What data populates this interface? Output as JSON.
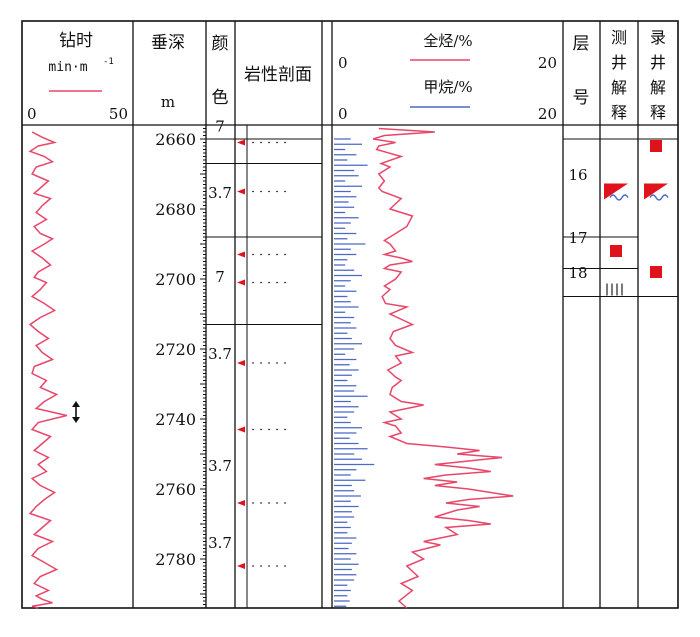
{
  "headers": {
    "rop": {
      "title": "钻时",
      "unit": "min·m",
      "unit_exp": "-1",
      "min": "0",
      "max": "50"
    },
    "depth": {
      "title": "垂深",
      "unit": "m"
    },
    "color": {
      "title_1": "颜",
      "title_2": "色"
    },
    "lithology": {
      "title": "岩性剖面"
    },
    "gas": {
      "total_label": "全烃/%",
      "total_min": "0",
      "total_max": "20",
      "methane_label": "甲烷/%",
      "methane_min": "0",
      "methane_max": "20"
    },
    "layer": {
      "title_1": "层",
      "title_2": "号"
    },
    "logging_interp": {
      "chars": [
        "测",
        "井",
        "解",
        "释"
      ]
    },
    "mud_interp": {
      "chars": [
        "录",
        "井",
        "解",
        "释"
      ]
    }
  },
  "colors": {
    "rop_curve": "#e8476a",
    "total_gas": "#e8476a",
    "methane": "#4b69c6",
    "marker_red": "#e0121b",
    "line": "#111111"
  },
  "depth_ticks": [
    "2660",
    "2680",
    "2700",
    "2720",
    "2740",
    "2760",
    "2780"
  ],
  "color_codes": [
    {
      "top": 2655,
      "label": "7"
    },
    {
      "top": 2674,
      "label": "3.7"
    },
    {
      "top": 2698,
      "label": "7"
    },
    {
      "top": 2720,
      "label": "3.7"
    },
    {
      "top": 2752,
      "label": "3.7"
    },
    {
      "top": 2774,
      "label": "3.7"
    }
  ],
  "color_boundaries": [
    2660,
    2667,
    2688,
    2713
  ],
  "layers": [
    {
      "top": 2670,
      "label": "16"
    },
    {
      "top": 2688,
      "label": "17"
    },
    {
      "top": 2698,
      "label": "18"
    }
  ],
  "layer_boundaries": [
    2660,
    2688,
    2697,
    2705
  ],
  "logging_interp_marks": [
    {
      "depth": 2675,
      "icon": "gas-water-icon"
    },
    {
      "depth": 2692,
      "icon": "red-square-icon"
    },
    {
      "depth": 2703,
      "icon": "dry-layer-icon"
    }
  ],
  "mud_interp_marks": [
    {
      "depth": 2662,
      "icon": "red-square-icon"
    },
    {
      "depth": 2675,
      "icon": "gas-water-icon"
    },
    {
      "depth": 2698,
      "icon": "red-square-icon"
    }
  ],
  "chart_data": [
    {
      "type": "line",
      "name": "rop",
      "xlim": [
        0,
        50
      ],
      "ylim": [
        2656,
        2794
      ],
      "x": [
        3,
        8,
        14,
        6,
        2,
        9,
        13,
        5,
        3,
        11,
        7,
        4,
        12,
        8,
        5,
        10,
        4,
        7,
        13,
        9,
        3,
        8,
        12,
        6,
        4,
        10,
        7,
        3,
        9,
        14,
        7,
        2,
        6,
        11,
        5,
        8,
        13,
        4,
        3,
        10,
        7,
        15,
        9,
        5,
        20,
        6,
        3,
        12,
        8,
        4,
        11,
        6,
        10,
        3,
        7,
        14,
        9,
        5,
        2,
        12,
        8,
        4,
        13,
        6,
        3,
        9,
        15,
        7,
        4,
        11,
        5,
        8,
        13,
        3,
        6
      ],
      "y": [
        2658,
        2659.5,
        2661,
        2662,
        2663.5,
        2665,
        2666.5,
        2668,
        2670,
        2672,
        2674,
        2675.5,
        2677,
        2679,
        2681,
        2683,
        2685,
        2687,
        2688.5,
        2690,
        2692,
        2694,
        2696,
        2698,
        2699.5,
        2701,
        2703,
        2705,
        2707,
        2709,
        2711,
        2713,
        2715,
        2717,
        2719,
        2721,
        2723,
        2725,
        2727,
        2729,
        2731,
        2733,
        2735,
        2737,
        2739,
        2741,
        2743,
        2745,
        2747,
        2749,
        2751,
        2753,
        2755,
        2757,
        2759,
        2761,
        2763,
        2765,
        2767,
        2769,
        2771,
        2773,
        2775,
        2777,
        2779,
        2781,
        2783,
        2785,
        2787,
        2789,
        2790.5,
        2791.5,
        2792.5,
        2793.5,
        2794
      ]
    },
    {
      "type": "line",
      "name": "total-gas",
      "xlim": [
        0,
        20
      ],
      "ylim": [
        2656,
        2794
      ],
      "x": [
        4,
        9,
        4.5,
        3.5,
        5.5,
        4,
        3.8,
        6,
        4.2,
        5,
        4,
        4.5,
        4,
        4.3,
        6,
        5,
        7,
        6.5,
        5.5,
        4.5,
        5,
        5.5,
        4.5,
        6,
        7,
        5,
        4.5,
        6,
        5.5,
        4.5,
        5,
        4.3,
        4.6,
        6.5,
        5,
        7,
        5.3,
        5,
        5.5,
        7,
        5.5,
        6,
        4.8,
        5.5,
        6,
        5.2,
        5,
        6,
        8,
        6.5,
        5,
        6,
        4.5,
        5.5,
        6,
        5,
        6.5,
        10,
        13,
        11,
        15,
        12,
        9,
        12,
        14,
        10,
        8,
        11,
        9,
        12,
        16,
        12,
        10,
        13,
        11,
        9,
        12,
        14,
        10,
        11,
        8,
        9.5,
        7,
        8,
        6.5,
        7.5,
        6,
        7,
        5.8,
        6.5
      ],
      "y": [
        2657,
        2658,
        2659,
        2660,
        2661,
        2662,
        2663,
        2665,
        2667,
        2668,
        2670,
        2672,
        2674,
        2675,
        2677,
        2680,
        2682,
        2685,
        2687,
        2689,
        2690,
        2692,
        2693,
        2694,
        2695,
        2696,
        2697,
        2698,
        2700,
        2702,
        2703,
        2705,
        2707,
        2708,
        2710,
        2713,
        2715,
        2717,
        2719,
        2721,
        2722,
        2724,
        2726,
        2728,
        2729,
        2731,
        2733,
        2735,
        2736,
        2737,
        2738,
        2740,
        2741,
        2742,
        2744,
        2745,
        2747,
        2748,
        2749,
        2750,
        2751,
        2752,
        2753,
        2754,
        2755,
        2756,
        2757,
        2758,
        2759,
        2760,
        2762,
        2763,
        2764,
        2765,
        2766,
        2768,
        2769,
        2770,
        2771,
        2773,
        2775,
        2776,
        2778,
        2780,
        2782,
        2785,
        2787,
        2789,
        2792,
        2794
      ]
    },
    {
      "type": "bar",
      "name": "methane",
      "xlim": [
        0,
        20
      ],
      "ylim": [
        2656,
        2794
      ],
      "y": [
        2660,
        2661.5,
        2663,
        2664.5,
        2666,
        2667.5,
        2669,
        2670.5,
        2672,
        2673.5,
        2675,
        2676.5,
        2678,
        2679.5,
        2681,
        2682.5,
        2684,
        2685.5,
        2687,
        2688.5,
        2690,
        2691.5,
        2693,
        2694.5,
        2696,
        2697.5,
        2699,
        2700.5,
        2702,
        2703.5,
        2705,
        2706.5,
        2708,
        2709.5,
        2711,
        2712.5,
        2714,
        2715.5,
        2717,
        2718.5,
        2720,
        2721.5,
        2723,
        2724.5,
        2726,
        2727.5,
        2729,
        2730.5,
        2732,
        2733.5,
        2735,
        2736.5,
        2738,
        2739.5,
        2741,
        2742.5,
        2744,
        2745.5,
        2747,
        2748.5,
        2750,
        2751.5,
        2753,
        2754.5,
        2756,
        2757.5,
        2759,
        2760.5,
        2762,
        2763.5,
        2765,
        2766.5,
        2768,
        2769.5,
        2771,
        2772.5,
        2774,
        2775.5,
        2777,
        2778.5,
        2780,
        2781.5,
        2783,
        2784.5,
        2786,
        2787.5,
        2789,
        2790.5,
        2792,
        2793.5
      ],
      "values": [
        1.5,
        2.5,
        1,
        2,
        1.2,
        3,
        1.8,
        2.2,
        1,
        2.5,
        1.5,
        2,
        1.3,
        1.8,
        1,
        2.2,
        1.5,
        1,
        2,
        1.2,
        2.8,
        1.5,
        2,
        1.2,
        1,
        1.8,
        2.5,
        1.5,
        1,
        2,
        1.2,
        1.5,
        2.2,
        1,
        1.8,
        1.5,
        2,
        1.2,
        1.6,
        2.5,
        1.8,
        1,
        2,
        1.4,
        2.2,
        1.6,
        1.2,
        2,
        1.8,
        3,
        1.5,
        2.2,
        1.8,
        1.2,
        1.5,
        2.5,
        2,
        1.4,
        2.2,
        3,
        1.8,
        2.5,
        3.6,
        2,
        1.5,
        2.8,
        1.6,
        1.8,
        2.4,
        1.5,
        2.2,
        1.6,
        1.8,
        1.2,
        1.5,
        1.2,
        2,
        1.6,
        1.3,
        2,
        1.5,
        2.2,
        1.6,
        2,
        1.8,
        1.2,
        1.5,
        1.2,
        1.4,
        1.1
      ]
    }
  ]
}
